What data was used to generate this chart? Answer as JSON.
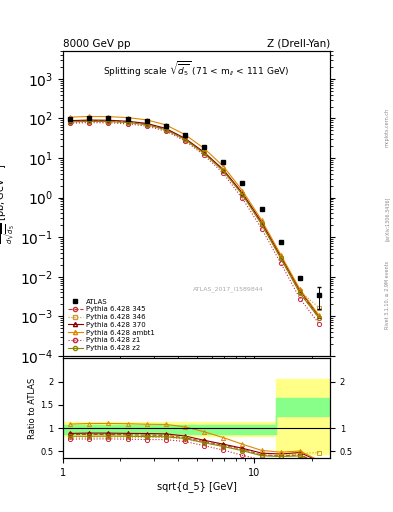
{
  "title_left": "8000 GeV pp",
  "title_right": "Z (Drell-Yan)",
  "subtitle": "Splitting scale $\\sqrt{\\overline{d_5}}$ (71 < m$_{ll}$ < 111 GeV)",
  "watermark": "ATLAS_2017_I1589844",
  "right_label_top": "Rivet 3.1.10, ≥ 2.9M events",
  "right_label_bottom": "[arXiv:1306.3436]",
  "right_label_bottom2": "mcplots.cern.ch",
  "xlabel": "sqrt{d_5} [GeV]",
  "ylabel_ratio": "Ratio to ATLAS",
  "xlim": [
    1.0,
    25.0
  ],
  "ylim_main": [
    0.0001,
    5000.0
  ],
  "ylim_ratio": [
    0.35,
    2.5
  ],
  "atlas_x": [
    1.09,
    1.37,
    1.73,
    2.18,
    2.74,
    3.45,
    4.35,
    5.48,
    6.9,
    8.69,
    10.95,
    13.79,
    17.38,
    21.88
  ],
  "atlas_y": [
    99.5,
    102.0,
    101.0,
    96.0,
    85.0,
    64.0,
    38.0,
    19.0,
    7.8,
    2.3,
    0.52,
    0.075,
    0.0095,
    0.0035
  ],
  "atlas_yerr": [
    5.0,
    5.0,
    5.0,
    4.8,
    4.2,
    3.2,
    1.9,
    0.95,
    0.39,
    0.115,
    0.026,
    0.004,
    0.0005,
    0.002
  ],
  "py345_x": [
    1.09,
    1.37,
    1.73,
    2.18,
    2.74,
    3.45,
    4.35,
    5.48,
    6.9,
    8.69,
    10.95,
    13.79,
    17.38,
    21.88
  ],
  "py345_y": [
    86.0,
    88.0,
    87.0,
    82.0,
    72.0,
    54.0,
    30.0,
    13.5,
    4.9,
    1.25,
    0.22,
    0.03,
    0.004,
    0.0009
  ],
  "py346_x": [
    1.09,
    1.37,
    1.73,
    2.18,
    2.74,
    3.45,
    4.35,
    5.48,
    6.9,
    8.69,
    10.95,
    13.79,
    17.38,
    21.88
  ],
  "py346_y": [
    80.0,
    82.0,
    81.5,
    77.0,
    68.0,
    51.0,
    29.0,
    13.0,
    4.8,
    1.22,
    0.22,
    0.03,
    0.0043,
    0.00165
  ],
  "py370_x": [
    1.09,
    1.37,
    1.73,
    2.18,
    2.74,
    3.45,
    4.35,
    5.48,
    6.9,
    8.69,
    10.95,
    13.79,
    17.38,
    21.88
  ],
  "py370_y": [
    88.0,
    91.0,
    90.0,
    85.0,
    75.0,
    56.0,
    31.5,
    14.0,
    5.1,
    1.3,
    0.24,
    0.033,
    0.0045,
    0.001
  ],
  "pyambt1_x": [
    1.09,
    1.37,
    1.73,
    2.18,
    2.74,
    3.45,
    4.35,
    5.48,
    6.9,
    8.69,
    10.95,
    13.79,
    17.38,
    21.88
  ],
  "pyambt1_y": [
    108.0,
    112.0,
    111.0,
    105.0,
    92.0,
    69.0,
    39.0,
    17.5,
    6.2,
    1.5,
    0.27,
    0.036,
    0.0048,
    0.00105
  ],
  "pyz1_x": [
    1.09,
    1.37,
    1.73,
    2.18,
    2.74,
    3.45,
    4.35,
    5.48,
    6.9,
    8.69,
    10.95,
    13.79,
    17.38,
    21.88
  ],
  "pyz1_y": [
    76.0,
    78.0,
    77.5,
    73.0,
    64.0,
    48.0,
    27.0,
    11.8,
    4.1,
    0.95,
    0.165,
    0.022,
    0.0028,
    0.00065
  ],
  "pyz2_x": [
    1.09,
    1.37,
    1.73,
    2.18,
    2.74,
    3.45,
    4.35,
    5.48,
    6.9,
    8.69,
    10.95,
    13.79,
    17.38,
    21.88
  ],
  "pyz2_y": [
    82.0,
    84.0,
    83.5,
    79.0,
    69.5,
    52.0,
    29.5,
    13.0,
    4.7,
    1.18,
    0.21,
    0.029,
    0.0038,
    0.0009
  ],
  "color_345": "#cc3333",
  "color_346": "#cc9933",
  "color_370": "#880000",
  "color_ambt1": "#dd8800",
  "color_z1": "#cc2244",
  "color_z2": "#888800",
  "band_x": [
    1.0,
    1.09,
    1.37,
    1.73,
    2.18,
    2.74,
    3.45,
    4.35,
    5.48,
    6.9,
    8.69,
    13.0,
    13.0,
    25.0
  ],
  "yellow_hi": [
    1.12,
    1.12,
    1.12,
    1.12,
    1.12,
    1.12,
    1.12,
    1.12,
    1.12,
    1.12,
    1.12,
    1.12,
    2.05,
    2.05
  ],
  "yellow_lo": [
    0.82,
    0.82,
    0.82,
    0.82,
    0.82,
    0.82,
    0.82,
    0.82,
    0.82,
    0.82,
    0.82,
    0.82,
    0.45,
    0.45
  ],
  "green_hi": [
    1.06,
    1.06,
    1.06,
    1.06,
    1.06,
    1.06,
    1.06,
    1.06,
    1.06,
    1.06,
    1.06,
    1.06,
    1.65,
    1.65
  ],
  "green_lo": [
    0.88,
    0.88,
    0.88,
    0.88,
    0.88,
    0.88,
    0.88,
    0.88,
    0.88,
    0.88,
    0.88,
    0.88,
    1.25,
    1.25
  ]
}
